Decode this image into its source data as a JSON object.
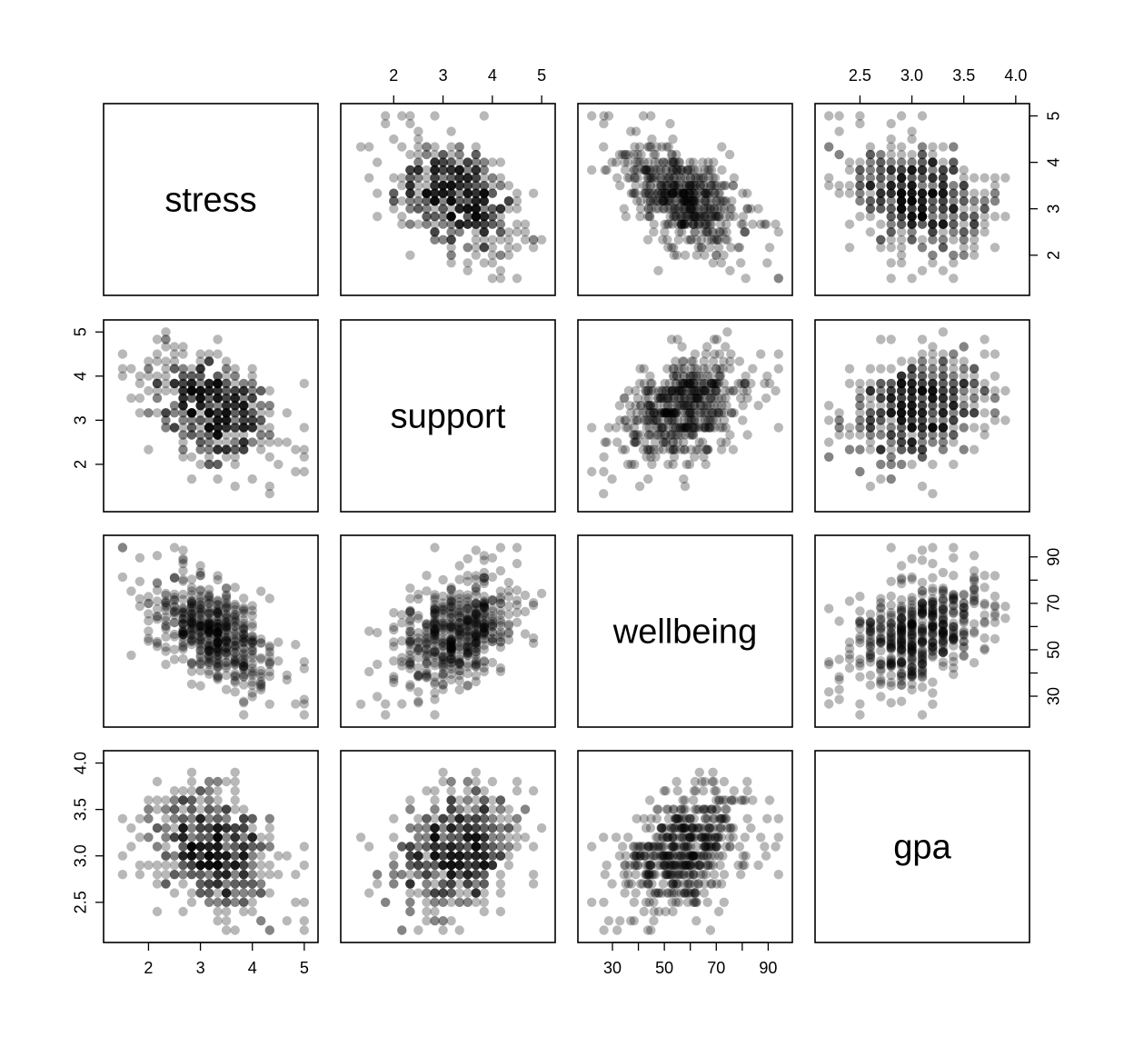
{
  "chart_data": {
    "type": "scatter",
    "subtype": "scatterplot-matrix",
    "variables": [
      "stress",
      "support",
      "wellbeing",
      "gpa"
    ],
    "ranges": {
      "stress": [
        1.3,
        5.1
      ],
      "support": [
        1.1,
        5.1
      ],
      "wellbeing": [
        20,
        96
      ],
      "gpa": [
        2.15,
        4.05
      ]
    },
    "ticks": {
      "stress": [
        2,
        3,
        4,
        5
      ],
      "support": [
        2,
        3,
        4,
        5
      ],
      "wellbeing": [
        30,
        40,
        50,
        60,
        70,
        80,
        90
      ],
      "gpa": [
        2.5,
        3.0,
        3.5,
        4.0
      ]
    },
    "tick_labels": {
      "stress": [
        "2",
        "3",
        "4",
        "5"
      ],
      "support": [
        "2",
        "3",
        "4",
        "5"
      ],
      "wellbeing": [
        "30",
        "",
        "50",
        "",
        "70",
        "",
        "90"
      ],
      "gpa": [
        "2.5",
        "3.0",
        "3.5",
        "4.0"
      ]
    },
    "axis_placement": {
      "stress": "bottom",
      "support": "top-and-left",
      "wellbeing": "bottom-and-right",
      "gpa": "top-and-left"
    },
    "point_color": "#000000",
    "point_opacity": 0.28,
    "grid": false,
    "n_points": 500,
    "correlations": {
      "stress-support": -0.4,
      "stress-wellbeing": -0.6,
      "stress-gpa": -0.35,
      "support-wellbeing": 0.35,
      "support-gpa": 0.3,
      "wellbeing-gpa": 0.3
    },
    "means": {
      "stress": 3.2,
      "support": 3.3,
      "wellbeing": 58,
      "gpa": 3.05
    },
    "sds": {
      "stress": 0.65,
      "support": 0.65,
      "wellbeing": 12,
      "gpa": 0.33
    }
  }
}
